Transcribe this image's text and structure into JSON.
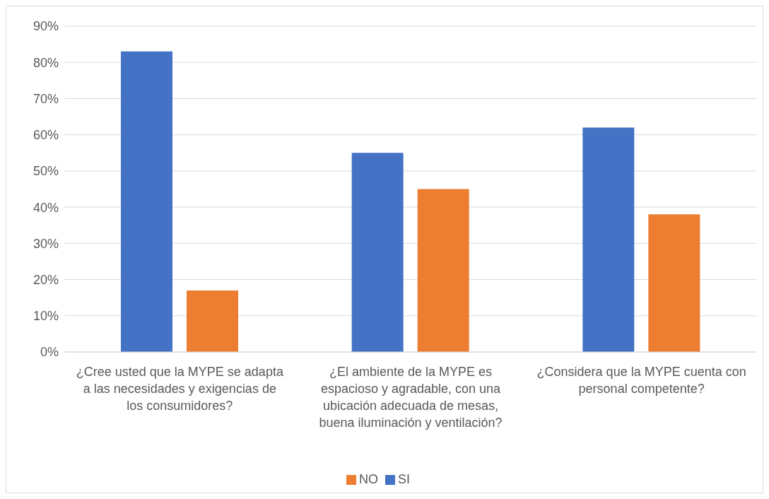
{
  "chart_data": {
    "type": "bar",
    "categories": [
      "¿Cree usted que la MYPE se adapta a las necesidades y exigencias de los consumidores?",
      "¿El ambiente de la MYPE es espacioso y agradable, con una ubicación adecuada de mesas, buena iluminación y ventilación?",
      "¿Considera que la MYPE cuenta con personal competente?"
    ],
    "series": [
      {
        "name": "SI",
        "color": "#4472c4",
        "values": [
          83,
          55,
          62
        ]
      },
      {
        "name": "NO",
        "color": "#ed7d31",
        "values": [
          17,
          45,
          38
        ]
      }
    ],
    "ylim": [
      0,
      90
    ],
    "yticks": [
      {
        "value": 0,
        "label": "0%"
      },
      {
        "value": 10,
        "label": "10%"
      },
      {
        "value": 20,
        "label": "20%"
      },
      {
        "value": 30,
        "label": "30%"
      },
      {
        "value": 40,
        "label": "40%"
      },
      {
        "value": 50,
        "label": "50%"
      },
      {
        "value": 60,
        "label": "60%"
      },
      {
        "value": 70,
        "label": "70%"
      },
      {
        "value": 80,
        "label": "80%"
      },
      {
        "value": 90,
        "label": "90%"
      }
    ],
    "grid": "y",
    "legend": "bottom"
  }
}
